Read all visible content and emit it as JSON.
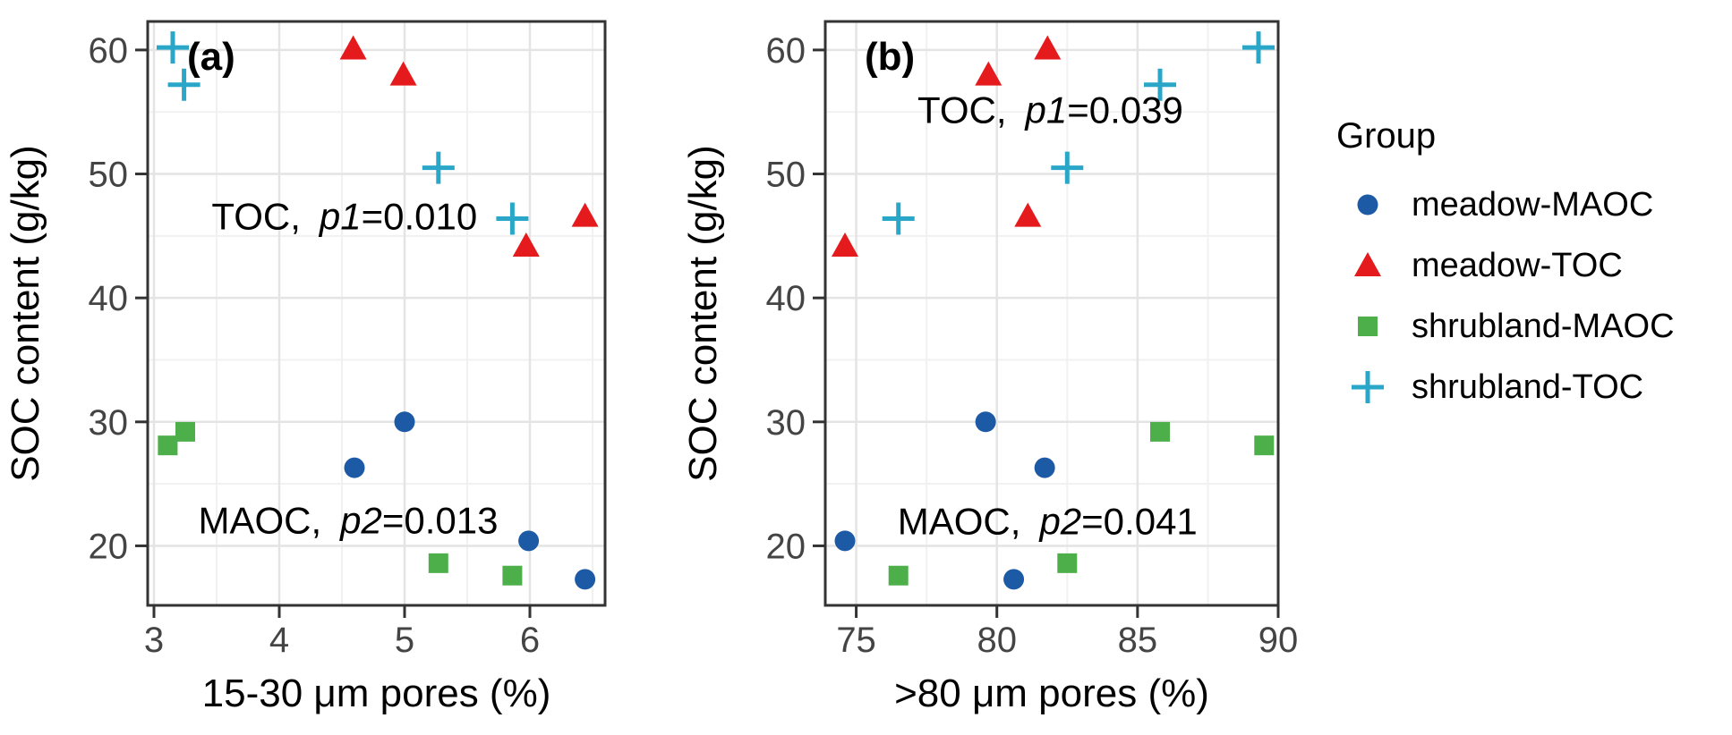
{
  "figure": {
    "legend": {
      "title": "Group",
      "items": [
        {
          "label": "meadow-MAOC",
          "marker": "circle",
          "color": "#1c5aa6"
        },
        {
          "label": "meadow-TOC",
          "marker": "triangle",
          "color": "#e41a1c"
        },
        {
          "label": "shrubland-MAOC",
          "marker": "square",
          "color": "#4daf4a"
        },
        {
          "label": "shrubland-TOC",
          "marker": "plus",
          "color": "#2aa7c8"
        }
      ]
    },
    "style": {
      "major_grid": "#e4e4e4",
      "minor_grid": "#f1f1f1",
      "border": "#333333",
      "tick_label_color": "#444444",
      "text_color": "#000000"
    }
  },
  "chart_data": [
    {
      "type": "scatter",
      "tag": "(a)",
      "xlabel": "15-30 μm pores (%)",
      "ylabel": "SOC content (g/kg)",
      "xlim": [
        2.95,
        6.6
      ],
      "ylim": [
        15.2,
        62.3
      ],
      "xticks": [
        3,
        4,
        5,
        6
      ],
      "xminor": [
        3.5,
        4.5,
        5.5,
        6.5
      ],
      "yticks": [
        20,
        30,
        40,
        50,
        60
      ],
      "yminor": [
        25,
        35,
        45,
        55
      ],
      "grid": "on",
      "legend_position": "right-outside",
      "annotations": [
        {
          "prefix": "TOC，",
          "italic": "p1",
          "suffix": "=0.010",
          "x": 4.52,
          "y": 46.6
        },
        {
          "prefix": "MAOC，",
          "italic": "p2",
          "suffix": "=0.013",
          "x": 4.55,
          "y": 22.1
        }
      ],
      "series": [
        {
          "name": "meadow-MAOC",
          "marker": "circle",
          "color": "#1c5aa6",
          "points": [
            [
              4.6,
              26.3
            ],
            [
              5.0,
              30.0
            ],
            [
              5.99,
              20.4
            ],
            [
              6.44,
              17.3
            ]
          ]
        },
        {
          "name": "meadow-TOC",
          "marker": "triangle",
          "color": "#e41a1c",
          "points": [
            [
              4.59,
              60.1
            ],
            [
              4.99,
              58.0
            ],
            [
              5.97,
              44.2
            ],
            [
              6.44,
              46.6
            ]
          ]
        },
        {
          "name": "shrubland-MAOC",
          "marker": "square",
          "color": "#4daf4a",
          "points": [
            [
              3.11,
              28.1
            ],
            [
              3.25,
              29.2
            ],
            [
              5.27,
              18.6
            ],
            [
              5.86,
              17.6
            ]
          ]
        },
        {
          "name": "shrubland-TOC",
          "marker": "plus",
          "color": "#2aa7c8",
          "points": [
            [
              3.15,
              60.2
            ],
            [
              3.24,
              57.2
            ],
            [
              5.27,
              50.5
            ],
            [
              5.86,
              46.4
            ]
          ]
        }
      ]
    },
    {
      "type": "scatter",
      "tag": "(b)",
      "xlabel": ">80 μm pores (%)",
      "ylabel": "SOC content (g/kg)",
      "xlim": [
        73.9,
        90.0
      ],
      "ylim": [
        15.2,
        62.3
      ],
      "xticks": [
        75,
        80,
        85,
        90
      ],
      "xminor": [
        77.5,
        82.5,
        87.5
      ],
      "yticks": [
        20,
        30,
        40,
        50,
        60
      ],
      "yminor": [
        25,
        35,
        45,
        55
      ],
      "grid": "on",
      "legend_position": "right-outside",
      "annotations": [
        {
          "prefix": "TOC，",
          "italic": "p1",
          "suffix": "=0.039",
          "x": 81.9,
          "y": 55.2
        },
        {
          "prefix": "MAOC，",
          "italic": "p2",
          "suffix": "=0.041",
          "x": 81.8,
          "y": 22.0
        }
      ],
      "series": [
        {
          "name": "meadow-MAOC",
          "marker": "circle",
          "color": "#1c5aa6",
          "points": [
            [
              74.6,
              20.4
            ],
            [
              79.6,
              30.0
            ],
            [
              80.6,
              17.3
            ],
            [
              81.7,
              26.3
            ]
          ]
        },
        {
          "name": "meadow-TOC",
          "marker": "triangle",
          "color": "#e41a1c",
          "points": [
            [
              74.6,
              44.2
            ],
            [
              79.7,
              58.0
            ],
            [
              81.1,
              46.6
            ],
            [
              81.8,
              60.1
            ]
          ]
        },
        {
          "name": "shrubland-MAOC",
          "marker": "square",
          "color": "#4daf4a",
          "points": [
            [
              76.5,
              17.6
            ],
            [
              82.5,
              18.6
            ],
            [
              85.8,
              29.2
            ],
            [
              89.5,
              28.1
            ]
          ]
        },
        {
          "name": "shrubland-TOC",
          "marker": "plus",
          "color": "#2aa7c8",
          "points": [
            [
              76.5,
              46.4
            ],
            [
              82.5,
              50.5
            ],
            [
              85.8,
              57.2
            ],
            [
              89.3,
              60.2
            ]
          ]
        }
      ]
    }
  ]
}
